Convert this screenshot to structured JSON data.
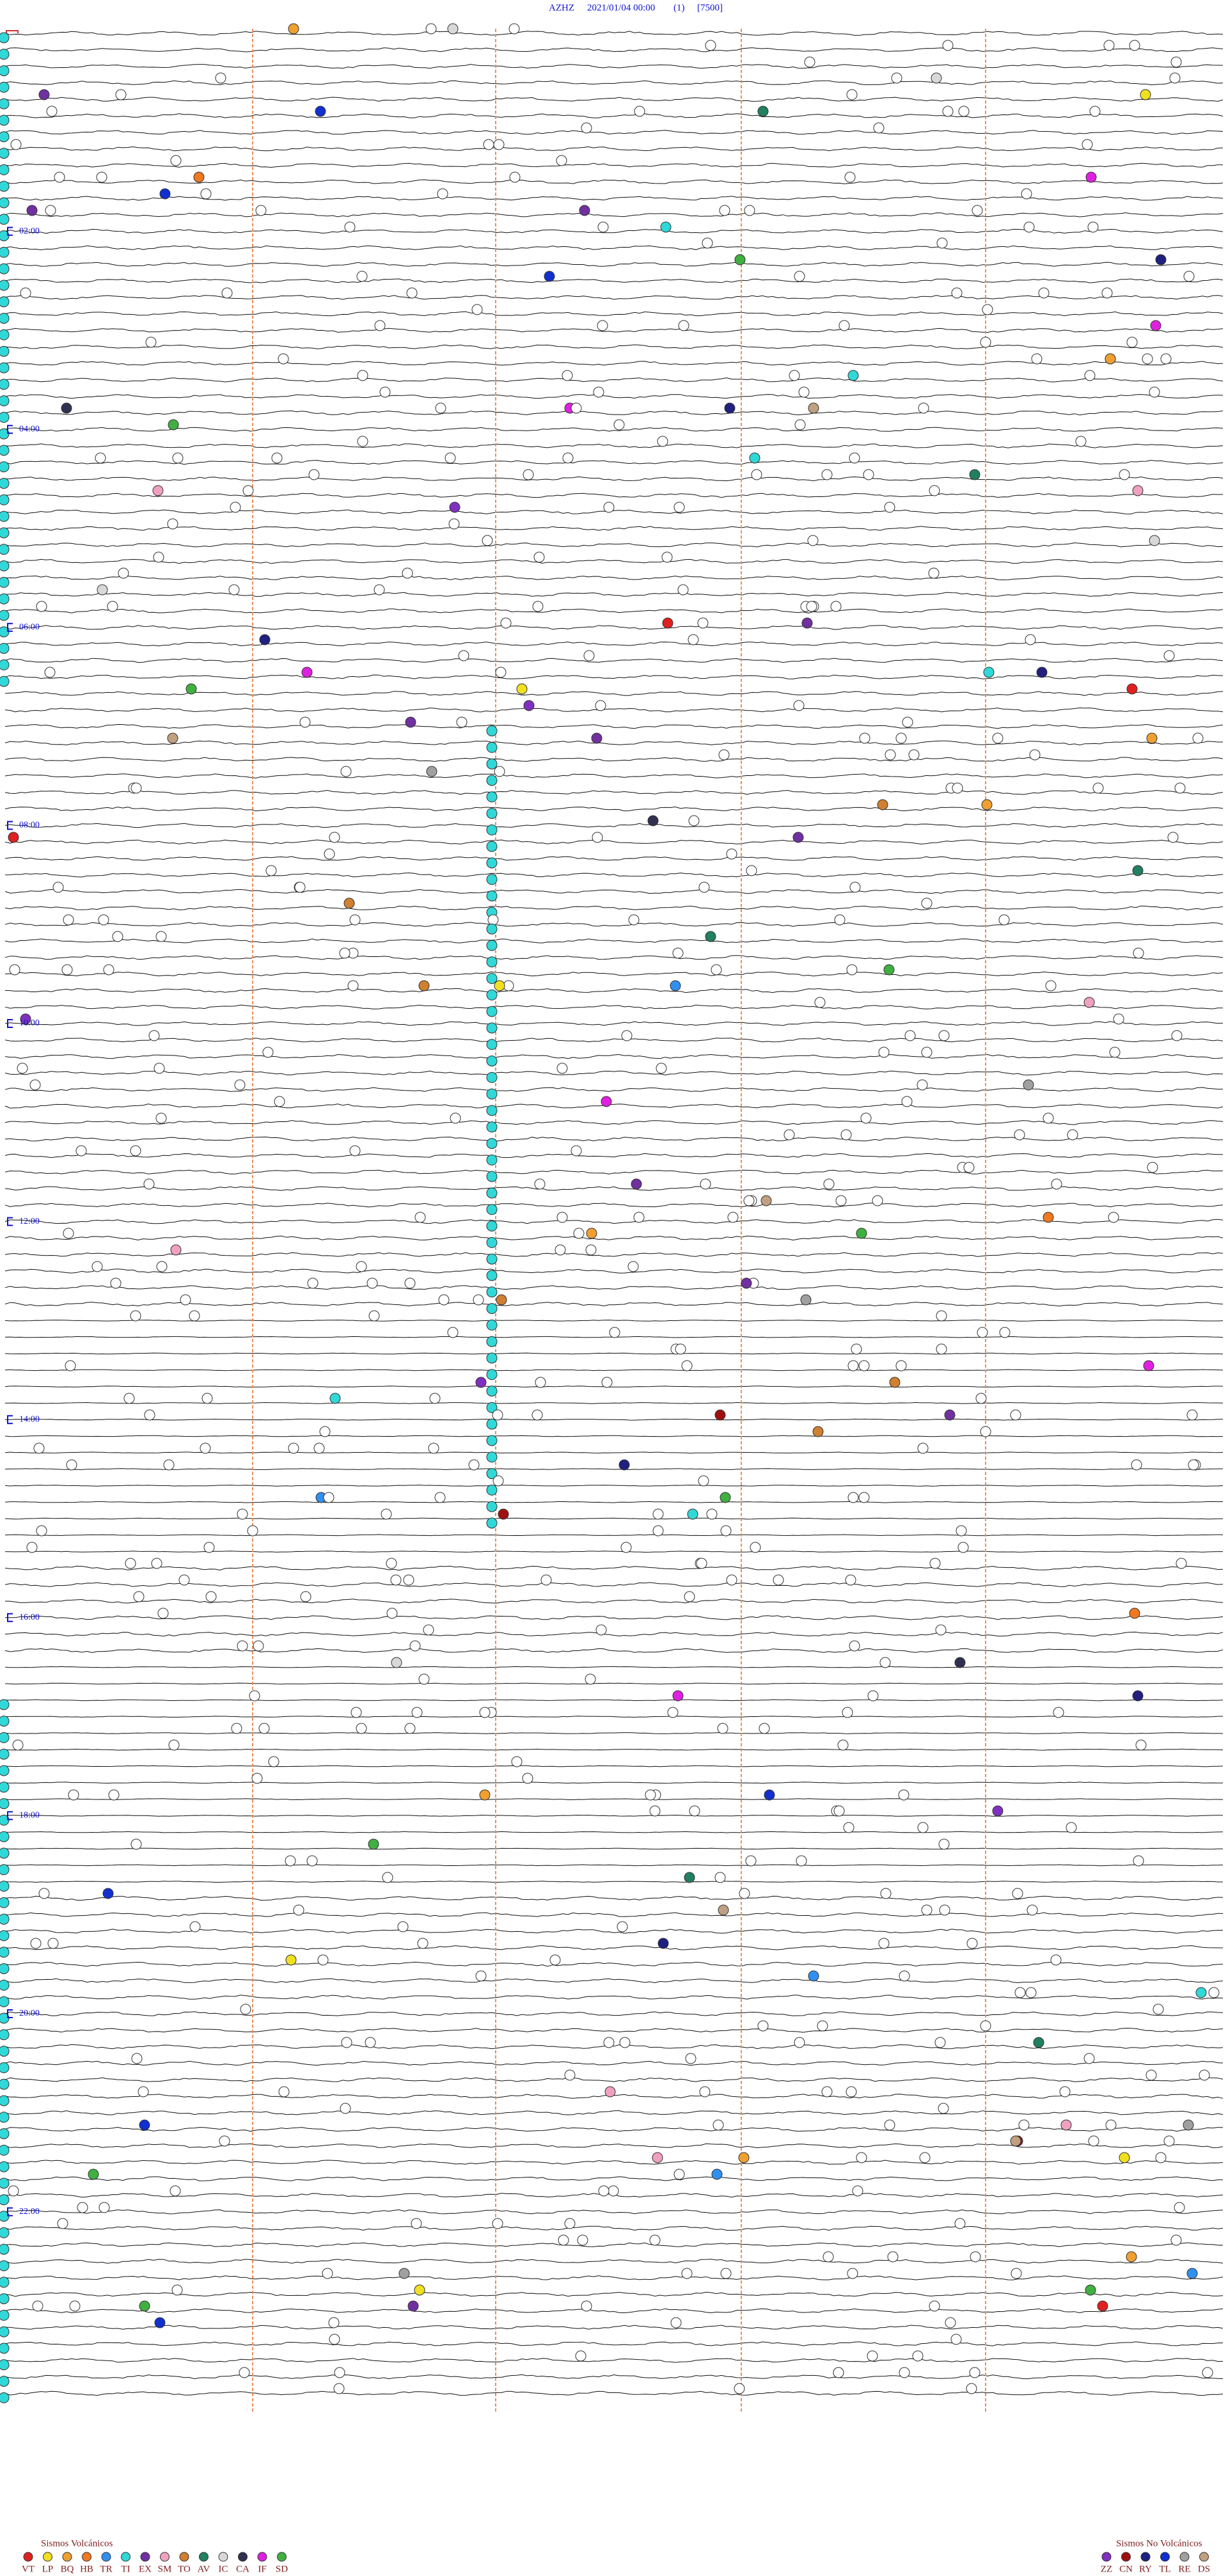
{
  "header": {
    "station": "AZHZ",
    "datetime": "2021/01/04 00:00",
    "channel": "(1)",
    "scale": "[7500]"
  },
  "time_labels": [
    "02:00",
    "04:00",
    "06:00",
    "08:00",
    "10:00",
    "12:00",
    "14:00",
    "16:00",
    "18:00",
    "20:00",
    "22:00"
  ],
  "legend": {
    "volcanic": {
      "title": "Sismos Volcánicos",
      "items": [
        {
          "code": "VT",
          "color": "#e02020"
        },
        {
          "code": "LP",
          "color": "#f0e020"
        },
        {
          "code": "BQ",
          "color": "#f0a030"
        },
        {
          "code": "HB",
          "color": "#f07820"
        },
        {
          "code": "TR",
          "color": "#3090f0"
        },
        {
          "code": "TI",
          "color": "#30d8d8"
        },
        {
          "code": "EX",
          "color": "#7030a0"
        },
        {
          "code": "SM",
          "color": "#f0a0c0"
        },
        {
          "code": "TO",
          "color": "#d08030"
        },
        {
          "code": "AV",
          "color": "#208060"
        },
        {
          "code": "IC",
          "color": "#d8d8d8"
        },
        {
          "code": "CA",
          "color": "#303050"
        },
        {
          "code": "IF",
          "color": "#e020e0"
        },
        {
          "code": "SD",
          "color": "#40b040"
        }
      ]
    },
    "non_volcanic": {
      "title": "Sismos No Volcánicos",
      "items": [
        {
          "code": "ZZ",
          "color": "#8030c0"
        },
        {
          "code": "CN",
          "color": "#a01010"
        },
        {
          "code": "RY",
          "color": "#202080"
        },
        {
          "code": "TL",
          "color": "#1030d0"
        },
        {
          "code": "RE",
          "color": "#a0a0a0"
        },
        {
          "code": "DS",
          "color": "#c0a080"
        }
      ]
    }
  }
}
